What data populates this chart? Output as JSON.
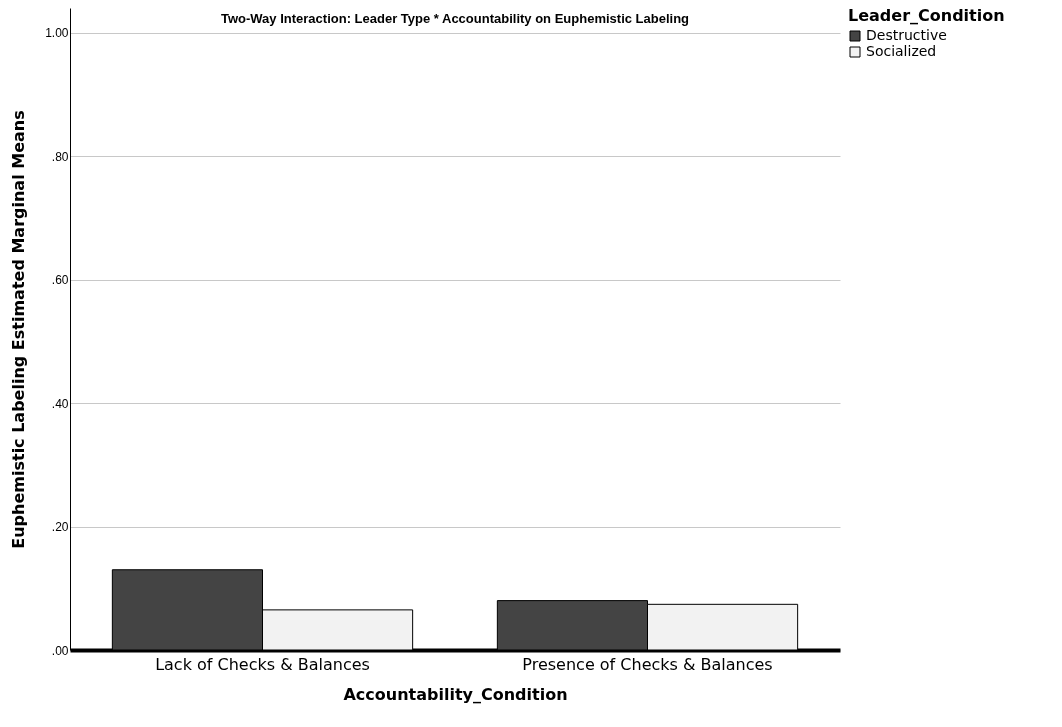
{
  "chart_data": {
    "type": "bar",
    "title": "Two-Way Interaction: Leader Type * Accountability on Euphemistic Labeling",
    "xlabel": "Accountability_Condition",
    "ylabel": "Euphemistic Labeling Estimated Marginal Means",
    "legend_title": "Leader_Condition",
    "categories": [
      "Lack of Checks & Balances",
      "Presence of Checks & Balances"
    ],
    "series": [
      {
        "name": "Destructive",
        "color": "#444444",
        "values": [
          0.13,
          0.08
        ]
      },
      {
        "name": "Socialized",
        "color": "#f2f2f2",
        "values": [
          0.065,
          0.074
        ]
      }
    ],
    "ylim": [
      0,
      1.04
    ],
    "yticks": [
      {
        "value": 0,
        "label": ".00"
      },
      {
        "value": 0.2,
        "label": ".20"
      },
      {
        "value": 0.4,
        "label": ".40"
      },
      {
        "value": 0.6,
        "label": ".60"
      },
      {
        "value": 0.8,
        "label": ".80"
      },
      {
        "value": 1,
        "label": "1.00"
      }
    ],
    "grid": "y",
    "legend": "top right"
  }
}
